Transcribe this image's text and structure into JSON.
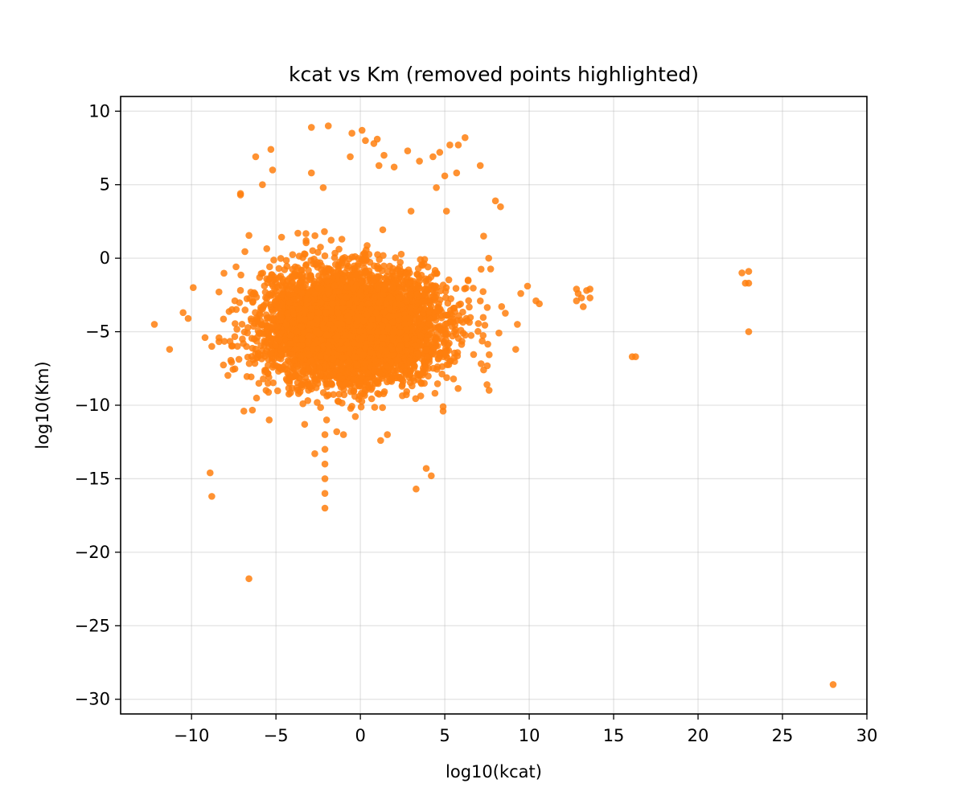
{
  "chart_data": {
    "type": "scatter",
    "title": "kcat vs Km (removed points highlighted)",
    "xlabel": "log10(kcat)",
    "ylabel": "log10(Km)",
    "xlim": [
      -14.2,
      30
    ],
    "ylim": [
      -31,
      11
    ],
    "xticks": [
      -10,
      -5,
      0,
      5,
      10,
      15,
      20,
      25,
      30
    ],
    "xtick_labels": [
      "−10",
      "−5",
      "0",
      "5",
      "10",
      "15",
      "20",
      "25",
      "30"
    ],
    "yticks": [
      10,
      5,
      0,
      -5,
      -10,
      -15,
      -20,
      -25,
      -30
    ],
    "ytick_labels": [
      "10",
      "5",
      "0",
      "−5",
      "−10",
      "−15",
      "−20",
      "−25",
      "−30"
    ],
    "grid": true,
    "legend": "none",
    "colors": {
      "points": "#ff7f0e"
    },
    "series": [
      {
        "cluster": {
          "center": [
            -0.5,
            -4.6
          ],
          "spread": [
            2.6,
            1.9
          ]
        },
        "points": [
          [
            -12.2,
            -4.5
          ],
          [
            -11.3,
            -6.2
          ],
          [
            -10.5,
            -3.7
          ],
          [
            -10.2,
            -4.1
          ],
          [
            -9.9,
            -2.0
          ],
          [
            -8.9,
            -14.6
          ],
          [
            -8.8,
            -16.2
          ],
          [
            -6.6,
            -21.8
          ],
          [
            -7.1,
            4.4
          ],
          [
            -7.1,
            4.3
          ],
          [
            -6.2,
            6.9
          ],
          [
            -5.8,
            5.0
          ],
          [
            -5.3,
            7.4
          ],
          [
            -5.2,
            6.0
          ],
          [
            -3.7,
            1.7
          ],
          [
            -2.9,
            8.9
          ],
          [
            -2.9,
            5.8
          ],
          [
            -2.2,
            4.8
          ],
          [
            -1.9,
            9.0
          ],
          [
            -0.6,
            6.9
          ],
          [
            -0.5,
            8.5
          ],
          [
            0.1,
            8.7
          ],
          [
            0.3,
            8.0
          ],
          [
            0.8,
            7.8
          ],
          [
            1.0,
            8.1
          ],
          [
            1.1,
            6.3
          ],
          [
            1.4,
            7.0
          ],
          [
            2.0,
            6.2
          ],
          [
            2.8,
            7.3
          ],
          [
            3.5,
            6.6
          ],
          [
            4.3,
            6.9
          ],
          [
            4.7,
            7.2
          ],
          [
            5.3,
            7.7
          ],
          [
            5.8,
            7.7
          ],
          [
            6.2,
            8.2
          ],
          [
            7.1,
            6.3
          ],
          [
            5.0,
            5.6
          ],
          [
            5.7,
            5.8
          ],
          [
            4.5,
            4.8
          ],
          [
            5.1,
            3.2
          ],
          [
            3.0,
            3.2
          ],
          [
            8.0,
            3.9
          ],
          [
            8.3,
            3.5
          ],
          [
            7.3,
            1.5
          ],
          [
            7.6,
            0.0
          ],
          [
            9.9,
            -1.9
          ],
          [
            10.4,
            -2.9
          ],
          [
            10.6,
            -3.1
          ],
          [
            9.5,
            -2.4
          ],
          [
            9.3,
            -4.5
          ],
          [
            9.2,
            -6.2
          ],
          [
            7.5,
            -8.6
          ],
          [
            7.3,
            -7.6
          ],
          [
            4.9,
            -10.1
          ],
          [
            4.9,
            -10.4
          ],
          [
            3.9,
            -14.3
          ],
          [
            4.2,
            -14.8
          ],
          [
            3.3,
            -15.7
          ],
          [
            1.6,
            -12.0
          ],
          [
            1.2,
            -12.4
          ],
          [
            -2.1,
            -17.0
          ],
          [
            -2.1,
            -16.0
          ],
          [
            -2.1,
            -15.0
          ],
          [
            -2.1,
            -14.0
          ],
          [
            -2.1,
            -13.0
          ],
          [
            -2.1,
            -12.0
          ],
          [
            -2.7,
            -13.3
          ],
          [
            -3.3,
            -11.3
          ],
          [
            -5.4,
            -11.0
          ],
          [
            -6.9,
            -10.4
          ],
          [
            -1.0,
            -12.0
          ],
          [
            -1.4,
            -11.8
          ],
          [
            -2.0,
            -11.0
          ],
          [
            -8.8,
            -6.0
          ],
          [
            -9.2,
            -5.4
          ],
          [
            12.8,
            -2.1
          ],
          [
            12.8,
            -2.9
          ],
          [
            12.9,
            -2.4
          ],
          [
            13.2,
            -3.3
          ],
          [
            13.1,
            -2.7
          ],
          [
            13.6,
            -2.1
          ],
          [
            13.6,
            -2.7
          ],
          [
            13.4,
            -2.2
          ],
          [
            16.1,
            -6.7
          ],
          [
            16.3,
            -6.7
          ],
          [
            22.6,
            -1.0
          ],
          [
            23.0,
            -0.9
          ],
          [
            22.8,
            -1.7
          ],
          [
            23.0,
            -1.7
          ],
          [
            23.0,
            -5.0
          ],
          [
            28.0,
            -29.0
          ]
        ]
      }
    ]
  }
}
